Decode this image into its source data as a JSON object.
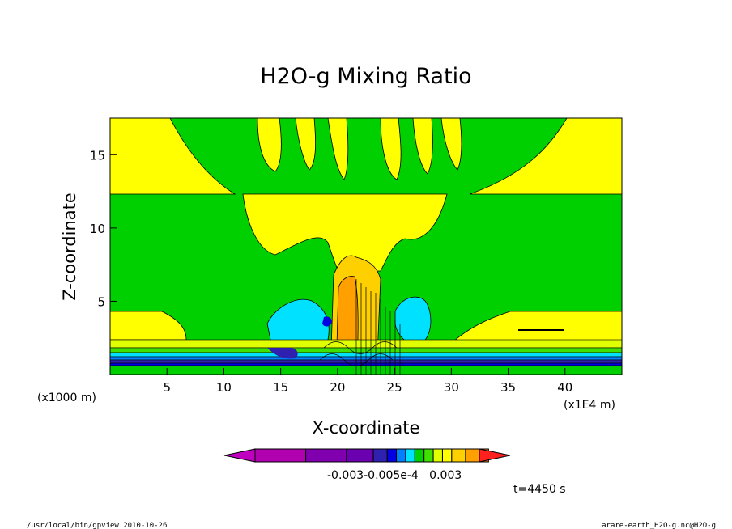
{
  "chart_data": {
    "type": "heatmap",
    "title": "H2O-g Mixing Ratio",
    "xlabel": "X-coordinate",
    "ylabel": "Z-coordinate",
    "x_unit_label": "(x1E4 m)",
    "y_unit_label": "(x1000 m)",
    "xlim": [
      0,
      45
    ],
    "ylim": [
      0,
      17.5
    ],
    "x_ticks": [
      5,
      10,
      15,
      20,
      25,
      30,
      35,
      40
    ],
    "x_tick_labels": [
      "5",
      "10",
      "15",
      "20",
      "25",
      "30",
      "35",
      "40"
    ],
    "y_ticks": [
      5,
      10,
      15
    ],
    "y_tick_labels": [
      "5",
      "10",
      "15"
    ],
    "colorbar": {
      "colors": [
        "#c000c0",
        "#b000b0",
        "#8000b0",
        "#6a00b0",
        "#3020b0",
        "#0000e0",
        "#0080ff",
        "#00e0ff",
        "#00d000",
        "#40e000",
        "#e0ff00",
        "#ffff00",
        "#ffd000",
        "#ffa000",
        "#ff8000",
        "#ff2020"
      ],
      "tick_labels": [
        "-0.003",
        "-0.005e-4",
        "0.003"
      ],
      "tick_label_text": "-0.003-0.005e-4   0.003"
    },
    "annotation": "t=4450 s"
  },
  "footer": {
    "left": "/usr/local/bin/gpview  2010-10-26",
    "right": "arare-earth_H2O-g.nc@H2O-g"
  }
}
